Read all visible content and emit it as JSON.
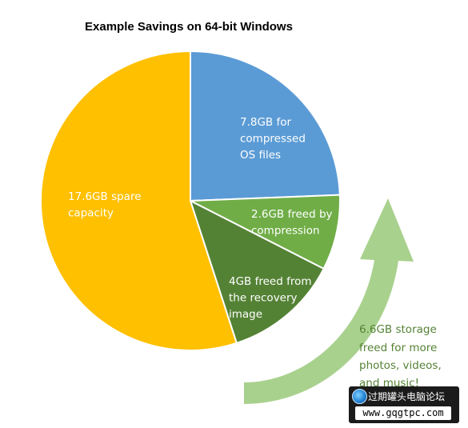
{
  "chart_data": {
    "type": "pie",
    "title": "Example Savings on 64-bit Windows",
    "slices": [
      {
        "label_lines": [
          "7.8GB for",
          "compressed",
          "OS files"
        ],
        "value": 7.8,
        "color": "#5B9BD5"
      },
      {
        "label_lines": [
          "2.6GB freed by",
          "compression"
        ],
        "value": 2.6,
        "color": "#70AD47"
      },
      {
        "label_lines": [
          "4GB freed from",
          "the recovery",
          "image"
        ],
        "value": 4.0,
        "color": "#548235"
      },
      {
        "label_lines": [
          "17.6GB spare",
          "capacity"
        ],
        "value": 17.6,
        "color": "#FFC000"
      }
    ],
    "start_angle_deg": 0,
    "direction": "clockwise",
    "slice_border_color": "#ffffff"
  },
  "callout": {
    "lines": [
      "6.6GB storage",
      "freed for more",
      "photos, videos,",
      "and music!"
    ],
    "text_color": "#548235",
    "arrow_color": "#A9D18E"
  },
  "watermark": {
    "cn_text": "过期罐头电脑论坛",
    "url": "www.gqgtpc.com"
  }
}
